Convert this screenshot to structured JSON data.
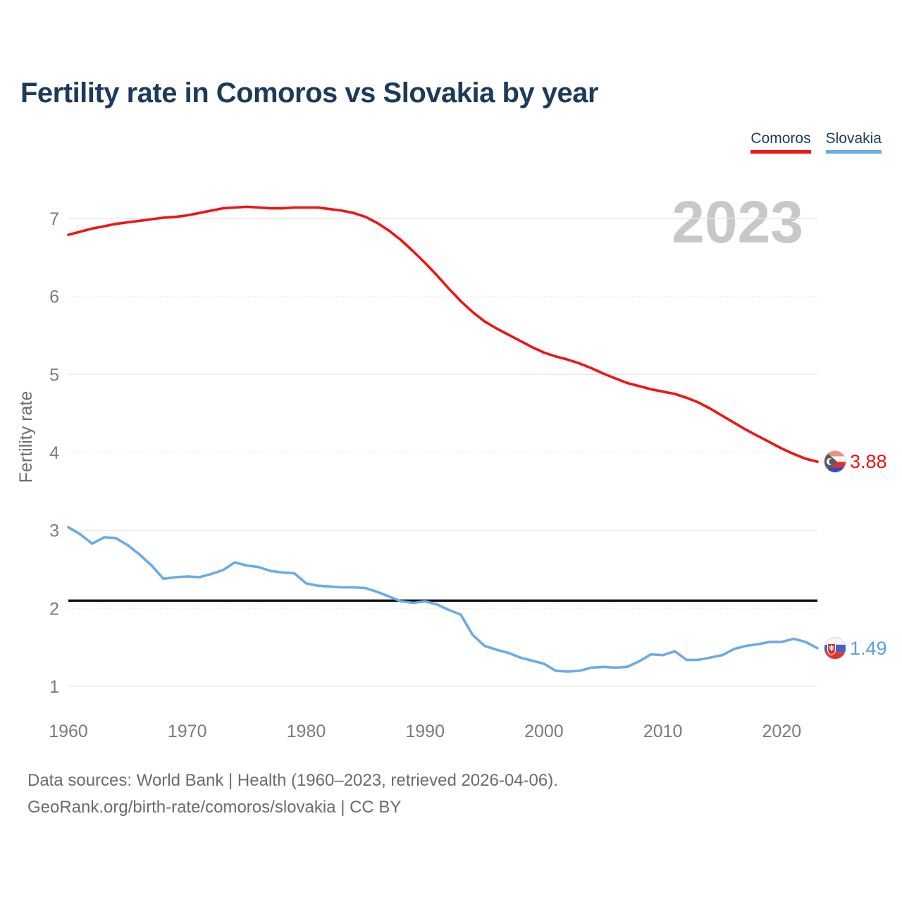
{
  "header": {
    "title": "Fertility rate in Comoros vs Slovakia by year"
  },
  "legend": [
    {
      "label": "Comoros",
      "color": "#f01414"
    },
    {
      "label": "Slovakia",
      "color": "#6cabe4"
    }
  ],
  "watermark": "2023",
  "chart_data": {
    "type": "line",
    "title": "Fertility rate in Comoros vs Slovakia by year",
    "xlabel": "",
    "ylabel": "Fertility rate",
    "ylim": [
      1,
      7
    ],
    "y_ticks": [
      1,
      2,
      3,
      4,
      5,
      6,
      7
    ],
    "x_ticks": [
      1960,
      1970,
      1980,
      1990,
      2000,
      2010,
      2020
    ],
    "grid": "horizontal",
    "legend_position": "top-right",
    "years": [
      1960,
      1961,
      1962,
      1963,
      1964,
      1965,
      1966,
      1967,
      1968,
      1969,
      1970,
      1971,
      1972,
      1973,
      1974,
      1975,
      1976,
      1977,
      1978,
      1979,
      1980,
      1981,
      1982,
      1983,
      1984,
      1985,
      1986,
      1987,
      1988,
      1989,
      1990,
      1991,
      1992,
      1993,
      1994,
      1995,
      1996,
      1997,
      1998,
      1999,
      2000,
      2001,
      2002,
      2003,
      2004,
      2005,
      2006,
      2007,
      2008,
      2009,
      2010,
      2011,
      2012,
      2013,
      2014,
      2015,
      2016,
      2017,
      2018,
      2019,
      2020,
      2021,
      2022,
      2023
    ],
    "series": [
      {
        "name": "Comoros",
        "color": "#f01414",
        "values": [
          6.79,
          6.83,
          6.87,
          6.9,
          6.93,
          6.95,
          6.97,
          6.99,
          7.01,
          7.02,
          7.04,
          7.07,
          7.1,
          7.13,
          7.14,
          7.15,
          7.14,
          7.13,
          7.13,
          7.14,
          7.14,
          7.14,
          7.12,
          7.1,
          7.07,
          7.02,
          6.94,
          6.84,
          6.72,
          6.58,
          6.43,
          6.27,
          6.1,
          5.94,
          5.8,
          5.68,
          5.59,
          5.51,
          5.43,
          5.35,
          5.28,
          5.23,
          5.19,
          5.14,
          5.08,
          5.01,
          4.95,
          4.89,
          4.85,
          4.81,
          4.78,
          4.75,
          4.7,
          4.64,
          4.56,
          4.47,
          4.38,
          4.29,
          4.21,
          4.13,
          4.05,
          3.98,
          3.92,
          3.88
        ]
      },
      {
        "name": "Slovakia",
        "color": "#6cabe4",
        "values": [
          3.04,
          2.95,
          2.83,
          2.91,
          2.9,
          2.81,
          2.69,
          2.55,
          2.38,
          2.4,
          2.41,
          2.4,
          2.44,
          2.49,
          2.59,
          2.55,
          2.53,
          2.48,
          2.46,
          2.45,
          2.32,
          2.29,
          2.28,
          2.27,
          2.27,
          2.26,
          2.21,
          2.15,
          2.09,
          2.07,
          2.09,
          2.05,
          1.98,
          1.92,
          1.66,
          1.52,
          1.47,
          1.43,
          1.37,
          1.33,
          1.29,
          1.2,
          1.19,
          1.2,
          1.24,
          1.25,
          1.24,
          1.25,
          1.32,
          1.41,
          1.4,
          1.45,
          1.34,
          1.34,
          1.37,
          1.4,
          1.48,
          1.52,
          1.54,
          1.57,
          1.57,
          1.61,
          1.57,
          1.49
        ]
      }
    ],
    "reference_line": {
      "value": 2.1,
      "color": "#111111"
    },
    "end_labels": [
      {
        "series": "Comoros",
        "value_label": "3.88",
        "flag": "comoros-flag-icon"
      },
      {
        "series": "Slovakia",
        "value_label": "1.49",
        "flag": "slovakia-flag-icon"
      }
    ]
  },
  "footer": {
    "line1": "Data sources: World Bank | Health (1960–2023, retrieved 2026-04-06).",
    "line2": "GeoRank.org/birth-rate/comoros/slovakia | CC BY"
  }
}
